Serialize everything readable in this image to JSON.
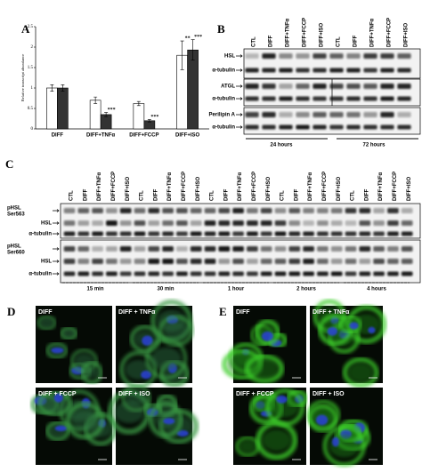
{
  "chart_data": {
    "type": "bar",
    "panel": "A",
    "ylabel": "Relative transcript abundance",
    "categories": [
      "DIFF",
      "DIFF+TNFα",
      "DIFF+FCCP",
      "DIFF+ISO"
    ],
    "series": [
      {
        "color": "#ffffff",
        "values": [
          1.0,
          0.7,
          0.62,
          1.8
        ],
        "errors": [
          0.08,
          0.08,
          0.05,
          0.35
        ],
        "significance": [
          null,
          null,
          null,
          "**"
        ]
      },
      {
        "color": "#333333",
        "values": [
          1.0,
          0.35,
          0.2,
          1.93
        ],
        "errors": [
          0.08,
          0.05,
          0.03,
          0.25
        ],
        "significance": [
          null,
          "***",
          "***",
          "***"
        ]
      }
    ],
    "ylim": [
      0,
      2.5
    ],
    "yticks": [
      0,
      0.5,
      1,
      1.5,
      2,
      2.5
    ]
  },
  "panel_b": {
    "letter": "B",
    "lanes": [
      "CTL",
      "DIFF",
      "DIFF+TNFα",
      "DIFF+FCCP",
      "DIFF+ISO"
    ],
    "rows": [
      "HSL",
      "α-tubulin",
      "ATGL",
      "α-tubulin",
      "Perilipin A",
      "α-tubulin"
    ],
    "times": [
      "24 hours",
      "72 hours"
    ]
  },
  "panel_c": {
    "letter": "C",
    "lanes": [
      "CTL",
      "DIFF",
      "DIFF+TNFα",
      "DIFF+FCCP",
      "DIFF+ISO"
    ],
    "rows": [
      "pHSL Ser563",
      "HSL",
      "α-tubulin",
      "pHSL Ser660",
      "HSL",
      "α-tubulin"
    ],
    "times": [
      "15 min",
      "30 min",
      "1 hour",
      "2 hours",
      "4 hours"
    ]
  },
  "panel_d": {
    "letter": "D",
    "images": [
      "DIFF",
      "DIFF + TNFα",
      "DIFF + FCCP",
      "DIFF + ISO"
    ]
  },
  "panel_e": {
    "letter": "E",
    "images": [
      "DIFF",
      "DIFF + TNFα",
      "DIFF + FCCP",
      "DIFF + ISO"
    ]
  }
}
